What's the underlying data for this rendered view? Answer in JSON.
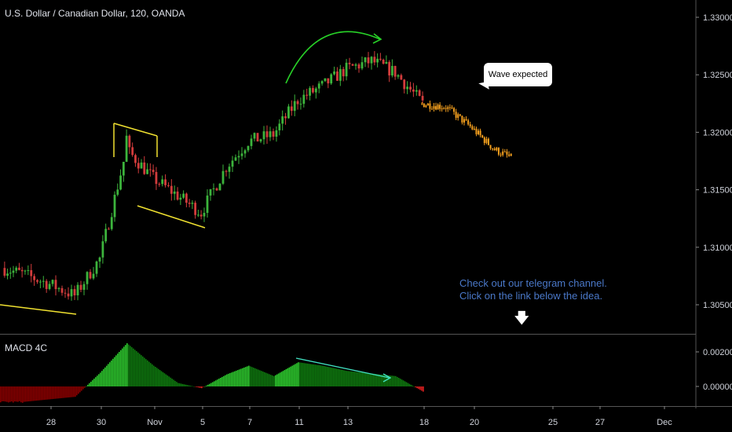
{
  "header": {
    "symbol_title": "U.S. Dollar / Canadian Dollar, 120, OANDA"
  },
  "macd_pane": {
    "title": "MACD 4C"
  },
  "annotations": {
    "callout_text": "Wave expected",
    "note_line1": "Check out our telegram channel.",
    "note_line2": "Click on the link below the idea.",
    "arrow_glyph": "🡇"
  },
  "colors": {
    "background": "#000000",
    "bull_candle": "#3cb43c",
    "bear_candle": "#d23c3c",
    "forecast": "#f5a01e",
    "trendline": "#f0e130",
    "arc_arrow": "#28d228",
    "macd_dark_green": "#0f7a0f",
    "macd_light_green": "#2ecc2e",
    "macd_dark_red": "#8b0000",
    "macd_red": "#e02020",
    "divergence_line": "#40e0c0"
  },
  "chart_data": [
    {
      "type": "candlestick",
      "title": "U.S. Dollar / Canadian Dollar, 120, OANDA",
      "y_axis": {
        "ticks": [
          "1.33000",
          "1.32500",
          "1.32000",
          "1.31500",
          "1.31000",
          "1.30500"
        ],
        "range": [
          1.3025,
          1.3335
        ]
      },
      "x_axis": {
        "ticks": [
          "28",
          "30",
          "Nov",
          "5",
          "7",
          "11",
          "13",
          "18",
          "20",
          "25",
          "27",
          "Dec"
        ]
      },
      "price_path_keypoints": [
        {
          "x": "27 Oct",
          "close": 1.3077
        },
        {
          "x": "28 Oct",
          "close": 1.3068
        },
        {
          "x": "29 Oct",
          "close": 1.3058
        },
        {
          "x": "30 Oct",
          "close": 1.309
        },
        {
          "x": "31 Oct",
          "close": 1.3185
        },
        {
          "x": "1 Nov",
          "close": 1.316
        },
        {
          "x": "4 Nov",
          "close": 1.3145
        },
        {
          "x": "5 Nov",
          "close": 1.313
        },
        {
          "x": "6 Nov",
          "close": 1.317
        },
        {
          "x": "7 Nov",
          "close": 1.3192
        },
        {
          "x": "8 Nov",
          "close": 1.3198
        },
        {
          "x": "11 Nov",
          "close": 1.3228
        },
        {
          "x": "12 Nov",
          "close": 1.324
        },
        {
          "x": "13 Nov",
          "close": 1.3255
        },
        {
          "x": "14 Nov",
          "close": 1.3262
        },
        {
          "x": "15 Nov",
          "close": 1.3252
        },
        {
          "x": "18 Nov",
          "close": 1.3225
        }
      ],
      "forecast_path": [
        {
          "x": "18 Nov",
          "close": 1.3225
        },
        {
          "x": "19 Nov",
          "close": 1.3222
        },
        {
          "x": "20 Nov",
          "close": 1.3205
        },
        {
          "x": "21 Nov",
          "close": 1.3185
        },
        {
          "x": "22 Nov",
          "close": 1.3178
        }
      ]
    },
    {
      "type": "bar",
      "title": "MACD 4C",
      "y_axis": {
        "ticks": [
          "0.00200",
          "0.00000"
        ],
        "range": [
          -0.0015,
          0.0027
        ]
      },
      "histogram_keypoints": [
        {
          "x": "27 Oct",
          "value": -0.0009
        },
        {
          "x": "29 Oct",
          "value": -0.0006
        },
        {
          "x": "30 Oct",
          "value": 0.0008
        },
        {
          "x": "31 Oct",
          "value": 0.0025
        },
        {
          "x": "1 Nov",
          "value": 0.0012
        },
        {
          "x": "4 Nov",
          "value": 0.0002
        },
        {
          "x": "5 Nov",
          "value": -0.0001
        },
        {
          "x": "6 Nov",
          "value": 0.0007
        },
        {
          "x": "7 Nov",
          "value": 0.0012
        },
        {
          "x": "8 Nov",
          "value": 0.0006
        },
        {
          "x": "11 Nov",
          "value": 0.0014
        },
        {
          "x": "12 Nov",
          "value": 0.0012
        },
        {
          "x": "13 Nov",
          "value": 0.0009
        },
        {
          "x": "15 Nov",
          "value": 0.0006
        },
        {
          "x": "18 Nov",
          "value": -0.0003
        }
      ]
    }
  ]
}
